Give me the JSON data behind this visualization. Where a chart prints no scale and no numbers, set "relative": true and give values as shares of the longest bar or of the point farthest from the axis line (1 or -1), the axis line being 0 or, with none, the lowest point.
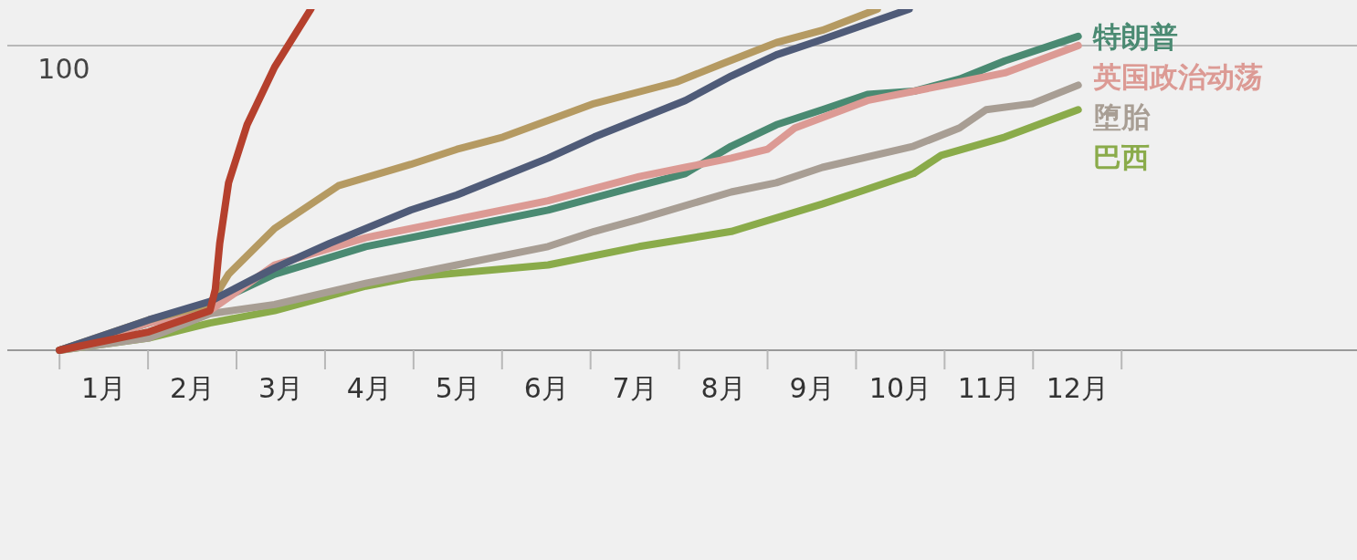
{
  "chart_data": {
    "type": "line",
    "relative": true,
    "xlim": [
      -0.59,
      14.66
    ],
    "xticks": [
      {
        "value": 0.5,
        "label": "1月"
      },
      {
        "value": 1.5,
        "label": "2月"
      },
      {
        "value": 2.5,
        "label": "3月"
      },
      {
        "value": 3.5,
        "label": "4月"
      },
      {
        "value": 4.5,
        "label": "5月"
      },
      {
        "value": 5.5,
        "label": "6月"
      },
      {
        "value": 6.5,
        "label": "7月"
      },
      {
        "value": 7.5,
        "label": "8月"
      },
      {
        "value": 8.5,
        "label": "9月"
      },
      {
        "value": 9.5,
        "label": "10月"
      },
      {
        "value": 10.5,
        "label": "11月"
      },
      {
        "value": 11.5,
        "label": "12月"
      }
    ],
    "ref_lines": [
      {
        "axis": "y",
        "value": 0.893,
        "color": "#b8b8b8"
      }
    ],
    "annotations": [
      "100"
    ],
    "marker": "none",
    "line_style": "solid",
    "series": [
      {
        "name": "巴西",
        "color": "#8aab4a",
        "x": [
          0,
          1.01,
          1.7,
          2.43,
          3.46,
          3.97,
          5.52,
          6.55,
          7.59,
          8.62,
          9.03,
          9.65,
          9.96,
          10.68,
          11.51
        ],
        "values": [
          0,
          0.036,
          0.08,
          0.116,
          0.188,
          0.214,
          0.25,
          0.304,
          0.348,
          0.429,
          0.464,
          0.518,
          0.571,
          0.625,
          0.705
        ]
      },
      {
        "name": "堕胎",
        "color": "#a89e94",
        "x": [
          0,
          1.01,
          1.7,
          2.43,
          3.46,
          4.49,
          5.52,
          6.04,
          6.55,
          7.59,
          8.1,
          8.62,
          9.65,
          10.17,
          10.47,
          10.99,
          11.51
        ],
        "values": [
          0,
          0.036,
          0.107,
          0.134,
          0.196,
          0.25,
          0.304,
          0.348,
          0.384,
          0.464,
          0.491,
          0.536,
          0.598,
          0.652,
          0.705,
          0.723,
          0.777
        ]
      },
      {
        "name": "特朗普",
        "color": "#4a8a72",
        "x": [
          0,
          1.01,
          1.7,
          2.43,
          3.46,
          4.49,
          5.52,
          6.55,
          7.07,
          7.59,
          8.1,
          8.62,
          9.13,
          9.65,
          10.17,
          10.68,
          11.51
        ],
        "values": [
          0,
          0.08,
          0.134,
          0.223,
          0.304,
          0.357,
          0.411,
          0.482,
          0.518,
          0.598,
          0.661,
          0.705,
          0.75,
          0.759,
          0.795,
          0.848,
          0.92
        ]
      },
      {
        "name": "英国政治动荡",
        "color": "#dc9a94",
        "x": [
          0,
          1.01,
          1.7,
          2.43,
          3.46,
          4.49,
          5.52,
          6.55,
          7.07,
          7.59,
          8.0,
          8.31,
          9.13,
          10.17,
          10.68,
          11.51
        ],
        "values": [
          0,
          0.08,
          0.116,
          0.25,
          0.33,
          0.384,
          0.438,
          0.509,
          0.536,
          0.563,
          0.589,
          0.652,
          0.732,
          0.786,
          0.813,
          0.893
        ]
      },
      {
        "color": "#b59a62",
        "x": [
          0,
          1.01,
          1.7,
          1.91,
          2.43,
          3.15,
          3.97,
          4.49,
          5.01,
          6.04,
          6.97,
          7.48,
          8.1,
          8.62,
          9.24
        ],
        "values": [
          0,
          0.089,
          0.134,
          0.223,
          0.357,
          0.482,
          0.545,
          0.589,
          0.625,
          0.723,
          0.786,
          0.839,
          0.902,
          0.938,
          1
        ]
      },
      {
        "color": "#4f5b78",
        "x": [
          0,
          1.01,
          1.7,
          2.43,
          3.05,
          3.97,
          4.49,
          5.52,
          6.04,
          7.07,
          7.59,
          8.1,
          8.62,
          9.6
        ],
        "values": [
          0,
          0.089,
          0.143,
          0.241,
          0.313,
          0.411,
          0.455,
          0.563,
          0.625,
          0.732,
          0.804,
          0.866,
          0.911,
          1
        ]
      },
      {
        "color": "#b5402d",
        "x": [
          0,
          1.01,
          1.7,
          1.76,
          1.81,
          1.91,
          2.12,
          2.43,
          2.84
        ],
        "values": [
          0,
          0.054,
          0.116,
          0.179,
          0.313,
          0.491,
          0.661,
          0.83,
          1
        ]
      }
    ]
  }
}
